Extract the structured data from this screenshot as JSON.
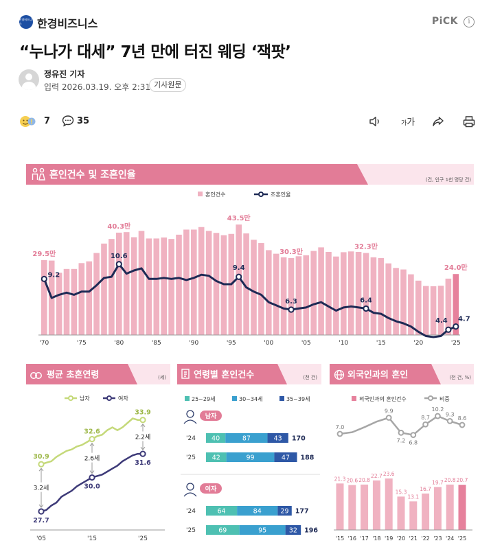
{
  "header": {
    "brand_logo_text": "한경비즈니스",
    "brand": "한경비즈니스",
    "pick": "PiCK",
    "info": "i"
  },
  "article": {
    "title": "“누나가 대세” 7년 만에 터진 웨딩 ‘잭팟’",
    "author": "정유진 기자",
    "datetime": "입력 2026.03.19. 오후 2:31",
    "original_button": "기사원문"
  },
  "actions": {
    "reactions": "7",
    "comments": "35",
    "font_size": "가"
  },
  "chart_data": [
    {
      "type": "bar",
      "title": "혼인건수 및 조혼인율",
      "unit": "(건, 인구 1천 명당 건)",
      "legend": [
        "혼인건수",
        "조혼인율"
      ],
      "x_tick_labels": [
        "'70",
        "'75",
        "'80",
        "'85",
        "'90",
        "'95",
        "'00",
        "'05",
        "'10",
        "'15",
        "'20",
        "'25"
      ],
      "bar_color": "#f0b2c1",
      "bar_highlight_color": "#e6819c",
      "line_color": "#1e2a55",
      "series": [
        {
          "name": "혼인건수",
          "x": [
            1970,
            1971,
            1972,
            1973,
            1974,
            1975,
            1976,
            1977,
            1978,
            1979,
            1980,
            1981,
            1982,
            1983,
            1984,
            1985,
            1986,
            1987,
            1988,
            1989,
            1990,
            1991,
            1992,
            1993,
            1994,
            1995,
            1996,
            1997,
            1998,
            1999,
            2000,
            2001,
            2002,
            2003,
            2004,
            2005,
            2006,
            2007,
            2008,
            2009,
            2010,
            2011,
            2012,
            2013,
            2014,
            2015,
            2016,
            2017,
            2018,
            2019,
            2020,
            2021,
            2022,
            2023,
            2024,
            2025
          ],
          "values": [
            29.5,
            29.3,
            24.5,
            26.0,
            26.0,
            28.3,
            29.0,
            32.3,
            36.0,
            37.8,
            40.3,
            40.5,
            38.5,
            41.0,
            38.0,
            38.0,
            38.4,
            37.8,
            39.5,
            41.5,
            41.5,
            42.5,
            41.0,
            40.2,
            39.3,
            39.8,
            43.5,
            40.0,
            37.5,
            36.2,
            33.4,
            32.0,
            30.6,
            30.3,
            31.0,
            31.4,
            33.1,
            34.5,
            32.7,
            30.9,
            32.6,
            32.9,
            32.7,
            32.3,
            30.6,
            30.3,
            28.2,
            26.4,
            25.8,
            23.9,
            21.4,
            19.3,
            19.2,
            19.4,
            22.2,
            24.0
          ],
          "labels": {
            "1970": "29.5만",
            "1980": "40.3만",
            "1996": "43.5만",
            "2003": "30.3만",
            "2013": "32.3만",
            "2025": "24.0만"
          }
        },
        {
          "name": "조혼인율",
          "x": [
            1970,
            1971,
            1972,
            1973,
            1974,
            1975,
            1976,
            1977,
            1978,
            1979,
            1980,
            1981,
            1982,
            1983,
            1984,
            1985,
            1986,
            1987,
            1988,
            1989,
            1990,
            1991,
            1992,
            1993,
            1994,
            1995,
            1996,
            1997,
            1998,
            1999,
            2000,
            2001,
            2002,
            2003,
            2004,
            2005,
            2006,
            2007,
            2008,
            2009,
            2010,
            2011,
            2012,
            2013,
            2014,
            2015,
            2016,
            2017,
            2018,
            2019,
            2020,
            2021,
            2022,
            2023,
            2024,
            2025
          ],
          "values": [
            9.2,
            7.4,
            7.7,
            7.9,
            7.7,
            8.0,
            8.0,
            8.6,
            9.3,
            9.4,
            10.6,
            9.7,
            10.0,
            10.2,
            9.2,
            9.2,
            9.3,
            9.2,
            9.3,
            9.1,
            9.3,
            9.6,
            9.5,
            9.0,
            8.7,
            8.7,
            9.4,
            8.4,
            8.0,
            7.7,
            7.0,
            6.7,
            6.4,
            6.3,
            6.4,
            6.5,
            6.8,
            7.0,
            6.6,
            6.2,
            6.5,
            6.6,
            6.5,
            6.4,
            6.0,
            5.9,
            5.5,
            5.2,
            5.0,
            4.7,
            4.2,
            3.8,
            3.7,
            3.8,
            4.4,
            4.7
          ],
          "labels": {
            "1970": "9.2",
            "1980": "10.6",
            "1996": "9.4",
            "2003": "6.3",
            "2013": "6.4",
            "2024": "4.4",
            "2025": "4.7"
          }
        }
      ]
    },
    {
      "type": "line",
      "title": "평균 초혼연령",
      "unit": "(세)",
      "legend": [
        "남자",
        "여자"
      ],
      "x_tick_labels": [
        "'05",
        "'15",
        "'25"
      ],
      "series": [
        {
          "name": "남자",
          "color": "#c5d97a",
          "x": [
            2005,
            2006,
            2007,
            2008,
            2009,
            2010,
            2011,
            2012,
            2013,
            2014,
            2015,
            2016,
            2017,
            2018,
            2019,
            2020,
            2021,
            2022,
            2023,
            2024,
            2025
          ],
          "values": [
            30.9,
            31.0,
            31.1,
            31.4,
            31.6,
            31.8,
            31.9,
            32.1,
            32.2,
            32.4,
            32.6,
            32.8,
            32.9,
            33.2,
            33.4,
            33.2,
            33.4,
            33.7,
            34.0,
            33.9,
            33.9
          ]
        },
        {
          "name": "여자",
          "color": "#3d3a78",
          "x": [
            2005,
            2006,
            2007,
            2008,
            2009,
            2010,
            2011,
            2012,
            2013,
            2014,
            2015,
            2016,
            2017,
            2018,
            2019,
            2020,
            2021,
            2022,
            2023,
            2024,
            2025
          ],
          "values": [
            27.7,
            27.8,
            28.1,
            28.3,
            28.7,
            28.9,
            29.1,
            29.4,
            29.6,
            29.8,
            30.0,
            30.1,
            30.2,
            30.4,
            30.6,
            30.8,
            31.1,
            31.3,
            31.5,
            31.6,
            31.6
          ]
        }
      ],
      "point_labels": {
        "male_2005": "30.9",
        "male_2015": "32.6",
        "male_2025": "33.9",
        "female_2005": "27.7",
        "female_2015": "30.0",
        "female_2025": "31.6"
      },
      "gap_labels": [
        "3.2세",
        "2.6세",
        "2.2세"
      ]
    },
    {
      "type": "bar",
      "title": "연령별 혼인건수",
      "unit": "(천 건)",
      "legend": [
        "25~29세",
        "30~34세",
        "35~39세"
      ],
      "colors": [
        "#4ec0b2",
        "#3aa0cf",
        "#2e58a6"
      ],
      "groups": [
        {
          "name": "남자",
          "rows": [
            {
              "year": "'24",
              "values": [
                40,
                87,
                43
              ],
              "total": "170"
            },
            {
              "year": "'25",
              "values": [
                42,
                99,
                47
              ],
              "total": "188"
            }
          ]
        },
        {
          "name": "여자",
          "rows": [
            {
              "year": "'24",
              "values": [
                64,
                84,
                29
              ],
              "total": "177"
            },
            {
              "year": "'25",
              "values": [
                69,
                95,
                32
              ],
              "total": "196"
            }
          ]
        }
      ]
    },
    {
      "type": "bar",
      "title": "외국인과의 혼인",
      "unit": "(천 건, %)",
      "legend": [
        "외국인과의 혼인건수",
        "비중"
      ],
      "categories": [
        "'15",
        "'16",
        "'17",
        "'18",
        "'19",
        "'20",
        "'21",
        "'22",
        "'23",
        "'24",
        "'25"
      ],
      "series": [
        {
          "name": "외국인과의 혼인건수",
          "values": [
            21.3,
            20.6,
            20.8,
            22.7,
            23.6,
            15.3,
            13.1,
            16.7,
            19.7,
            20.8,
            20.7
          ],
          "color": "#f0b2c1",
          "highlight": "#e6819c"
        },
        {
          "name": "비중",
          "values": [
            7.0,
            7.3,
            8.2,
            9.2,
            9.9,
            7.2,
            6.8,
            8.7,
            10.2,
            9.3,
            8.6
          ],
          "labels": {
            "0": "7.0",
            "4": "9.9",
            "5": "7.2",
            "6": "6.8",
            "7": "8.7",
            "8": "10.2",
            "9": "9.3",
            "10": "8.6"
          },
          "color": "#a6a6a6"
        }
      ]
    }
  ]
}
